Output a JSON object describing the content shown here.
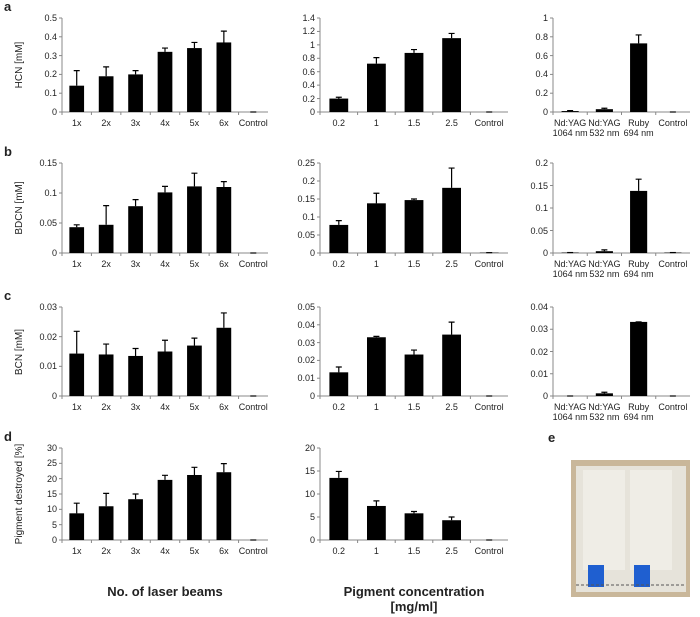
{
  "chart_data": [
    {
      "type": "bar",
      "panel": "a",
      "ylabel": "HCN [mM]",
      "categories": [
        "1x",
        "2x",
        "3x",
        "4x",
        "5x",
        "6x",
        "Control"
      ],
      "values": [
        0.14,
        0.19,
        0.2,
        0.32,
        0.34,
        0.37,
        0
      ],
      "errors": [
        0.08,
        0.05,
        0.02,
        0.02,
        0.03,
        0.06,
        0
      ],
      "color": "#000000",
      "ylim": [
        0,
        0.5
      ],
      "yticks": [
        0,
        0.1,
        0.2,
        0.3,
        0.4,
        0.5
      ]
    },
    {
      "type": "bar",
      "categories": [
        "0.2",
        "1",
        "1.5",
        "2.5",
        "Control"
      ],
      "values": [
        0.2,
        0.72,
        0.88,
        1.1,
        0
      ],
      "errors": [
        0.02,
        0.09,
        0.05,
        0.07,
        0
      ],
      "color": "#000000",
      "ylim": [
        0,
        1.4
      ],
      "yticks": [
        0,
        0.2,
        0.4,
        0.6,
        0.8,
        1,
        1.2,
        1.4
      ]
    },
    {
      "type": "bar",
      "categories": [
        "Nd:YAG\n1064 nm",
        "Nd:YAG\n532 nm",
        "Ruby\n694 nm",
        "Control"
      ],
      "values": [
        0.01,
        0.03,
        0.73,
        0
      ],
      "errors": [
        0.005,
        0.01,
        0.09,
        0
      ],
      "color": "#000000",
      "ylim": [
        0,
        1
      ],
      "yticks": [
        0,
        0.2,
        0.4,
        0.6,
        0.8,
        1
      ]
    },
    {
      "type": "bar",
      "panel": "b",
      "ylabel": "BDCN [mM]",
      "categories": [
        "1x",
        "2x",
        "3x",
        "4x",
        "5x",
        "6x",
        "Control"
      ],
      "values": [
        0.043,
        0.047,
        0.078,
        0.101,
        0.111,
        0.11,
        0
      ],
      "errors": [
        0.004,
        0.032,
        0.011,
        0.01,
        0.022,
        0.009,
        0
      ],
      "color": "#000000",
      "ylim": [
        0,
        0.15
      ],
      "yticks": [
        0,
        0.05,
        0.1,
        0.15
      ]
    },
    {
      "type": "bar",
      "categories": [
        "0.2",
        "1",
        "1.5",
        "2.5",
        "Control"
      ],
      "values": [
        0.078,
        0.138,
        0.147,
        0.181,
        0.001
      ],
      "errors": [
        0.012,
        0.028,
        0.003,
        0.055,
        0
      ],
      "color": "#000000",
      "ylim": [
        0,
        0.25
      ],
      "yticks": [
        0,
        0.05,
        0.1,
        0.15,
        0.2,
        0.25
      ]
    },
    {
      "type": "bar",
      "categories": [
        "Nd:YAG\n1064 nm",
        "Nd:YAG\n532 nm",
        "Ruby\n694 nm",
        "Control"
      ],
      "values": [
        0.001,
        0.004,
        0.138,
        0.001
      ],
      "errors": [
        0,
        0.003,
        0.026,
        0
      ],
      "color": "#000000",
      "ylim": [
        0,
        0.2
      ],
      "yticks": [
        0,
        0.05,
        0.1,
        0.15,
        0.2
      ]
    },
    {
      "type": "bar",
      "panel": "c",
      "ylabel": "BCN [mM]",
      "categories": [
        "1x",
        "2x",
        "3x",
        "4x",
        "5x",
        "6x",
        "Control"
      ],
      "values": [
        0.0143,
        0.014,
        0.0135,
        0.015,
        0.017,
        0.023,
        0
      ],
      "errors": [
        0.0075,
        0.0035,
        0.0025,
        0.0038,
        0.0025,
        0.005,
        0
      ],
      "color": "#000000",
      "ylim": [
        0,
        0.03
      ],
      "yticks": [
        0,
        0.01,
        0.02,
        0.03
      ]
    },
    {
      "type": "bar",
      "categories": [
        "0.2",
        "1",
        "1.5",
        "2.5",
        "Control"
      ],
      "values": [
        0.0133,
        0.033,
        0.0233,
        0.0345,
        0
      ],
      "errors": [
        0.003,
        0.0005,
        0.0025,
        0.007,
        0
      ],
      "color": "#000000",
      "ylim": [
        0,
        0.05
      ],
      "yticks": [
        0,
        0.01,
        0.02,
        0.03,
        0.04,
        0.05
      ]
    },
    {
      "type": "bar",
      "categories": [
        "Nd:YAG\n1064 nm",
        "Nd:YAG\n532 nm",
        "Ruby\n694 nm",
        "Control"
      ],
      "values": [
        0,
        0.0012,
        0.0333,
        0
      ],
      "errors": [
        0,
        0.0005,
        0,
        0
      ],
      "color": "#000000",
      "ylim": [
        0,
        0.04
      ],
      "yticks": [
        0,
        0.01,
        0.02,
        0.03,
        0.04
      ]
    },
    {
      "type": "bar",
      "panel": "d",
      "ylabel": "Pigment destroyed [%]",
      "xlabel": "No. of laser beams",
      "categories": [
        "1x",
        "2x",
        "3x",
        "4x",
        "5x",
        "6x",
        "Control"
      ],
      "values": [
        8.7,
        11,
        13.3,
        19.6,
        21.2,
        22.1,
        0
      ],
      "errors": [
        3.3,
        4.2,
        1.7,
        1.5,
        2.5,
        2.8,
        0
      ],
      "color": "#000000",
      "ylim": [
        0,
        30
      ],
      "yticks": [
        0,
        5,
        10,
        15,
        20,
        25,
        30
      ]
    },
    {
      "type": "bar",
      "xlabel": "Pigment concentration\n[mg/ml]",
      "categories": [
        "0.2",
        "1",
        "1.5",
        "2.5",
        "Control"
      ],
      "values": [
        13.5,
        7.4,
        5.8,
        4.3,
        0
      ],
      "errors": [
        1.4,
        1.1,
        0.4,
        0.7,
        0
      ],
      "color": "#000000",
      "ylim": [
        0,
        20
      ],
      "yticks": [
        0,
        5,
        10,
        15,
        20
      ]
    }
  ],
  "photo": {
    "panel": "e"
  }
}
